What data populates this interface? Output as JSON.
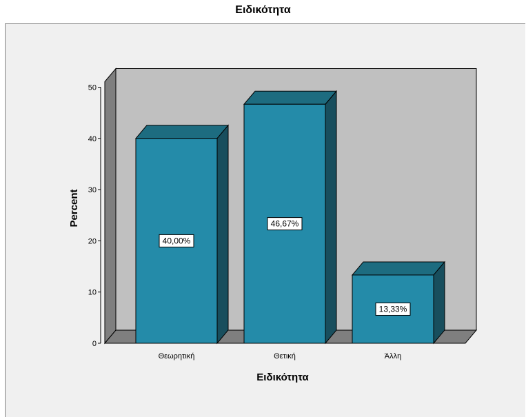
{
  "chart_data": {
    "type": "bar",
    "title": "Ειδικότητα",
    "xlabel": "Ειδικότητα",
    "ylabel": "Percent",
    "categories": [
      "Θεωρητική",
      "Θετική",
      "Άλλη"
    ],
    "values": [
      40.0,
      46.67,
      13.33
    ],
    "data_labels": [
      "40,00%",
      "46,67%",
      "13,33%"
    ],
    "ylim": [
      0,
      50
    ],
    "yticks": [
      "0",
      "10",
      "20",
      "30",
      "40",
      "50"
    ],
    "style": "3d",
    "legend": "none",
    "grid": false,
    "colors": {
      "bar_front": "#248BA9",
      "bar_top": "#1D6C80",
      "bar_side": "#184E5D",
      "back_wall": "#C0C0C0",
      "side_wall": "#7F7F7F",
      "floor": "#7F7F7F",
      "frame_bg": "#F0F0F0"
    }
  }
}
